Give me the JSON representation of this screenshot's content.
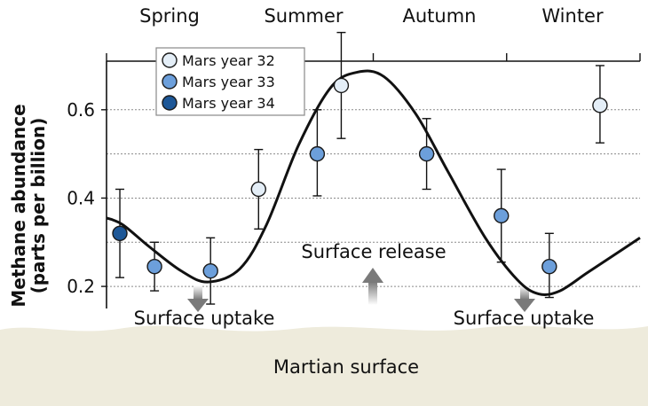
{
  "chart_data": {
    "type": "scatter",
    "title": "",
    "xlabel": "",
    "ylabel": "Methane abundance",
    "ylabel_units": "(parts per billion)",
    "seasons": [
      "Spring",
      "Summer",
      "Autumn",
      "Winter"
    ],
    "x_unit": "fraction of Mars year",
    "xlim": [
      0,
      1
    ],
    "ylim": [
      0.15,
      0.71
    ],
    "y_ticks": [
      0.2,
      0.4,
      0.6
    ],
    "y_tick_labels": [
      "0.2",
      "0.4",
      "0.6"
    ],
    "gridlines_y": [
      0.2,
      0.3,
      0.4,
      0.5,
      0.6
    ],
    "grid": true,
    "legend_position": "top-left",
    "series": [
      {
        "name": "Mars year 32",
        "color": "#e4eef7",
        "points": [
          {
            "x": 0.285,
            "y": 0.42,
            "low": 0.33,
            "high": 0.51
          },
          {
            "x": 0.44,
            "y": 0.655,
            "low": 0.535,
            "high": 0.775
          },
          {
            "x": 0.925,
            "y": 0.61,
            "low": 0.525,
            "high": 0.7
          }
        ]
      },
      {
        "name": "Mars year 33",
        "color": "#6c9fdb",
        "points": [
          {
            "x": 0.09,
            "y": 0.245,
            "low": 0.19,
            "high": 0.3
          },
          {
            "x": 0.195,
            "y": 0.235,
            "low": 0.16,
            "high": 0.31
          },
          {
            "x": 0.395,
            "y": 0.5,
            "low": 0.405,
            "high": 0.6
          },
          {
            "x": 0.6,
            "y": 0.5,
            "low": 0.42,
            "high": 0.58
          },
          {
            "x": 0.74,
            "y": 0.36,
            "low": 0.255,
            "high": 0.465
          },
          {
            "x": 0.83,
            "y": 0.245,
            "low": 0.175,
            "high": 0.32
          }
        ]
      },
      {
        "name": "Mars year 34",
        "color": "#1d5797",
        "points": [
          {
            "x": 0.025,
            "y": 0.32,
            "low": 0.22,
            "high": 0.42
          }
        ]
      }
    ],
    "model_curve": {
      "color": "#111111",
      "points": [
        [
          0.0,
          0.355
        ],
        [
          0.03,
          0.34
        ],
        [
          0.08,
          0.29
        ],
        [
          0.14,
          0.235
        ],
        [
          0.19,
          0.21
        ],
        [
          0.25,
          0.24
        ],
        [
          0.3,
          0.34
        ],
        [
          0.36,
          0.52
        ],
        [
          0.42,
          0.65
        ],
        [
          0.47,
          0.685
        ],
        [
          0.52,
          0.675
        ],
        [
          0.58,
          0.59
        ],
        [
          0.64,
          0.46
        ],
        [
          0.71,
          0.31
        ],
        [
          0.77,
          0.215
        ],
        [
          0.81,
          0.183
        ],
        [
          0.85,
          0.19
        ],
        [
          0.9,
          0.23
        ],
        [
          0.95,
          0.27
        ],
        [
          1.0,
          0.31
        ]
      ]
    },
    "annotations": {
      "uptake_left": "Surface uptake",
      "release": "Surface release",
      "uptake_right": "Surface uptake"
    },
    "surface_label": "Martian surface"
  }
}
